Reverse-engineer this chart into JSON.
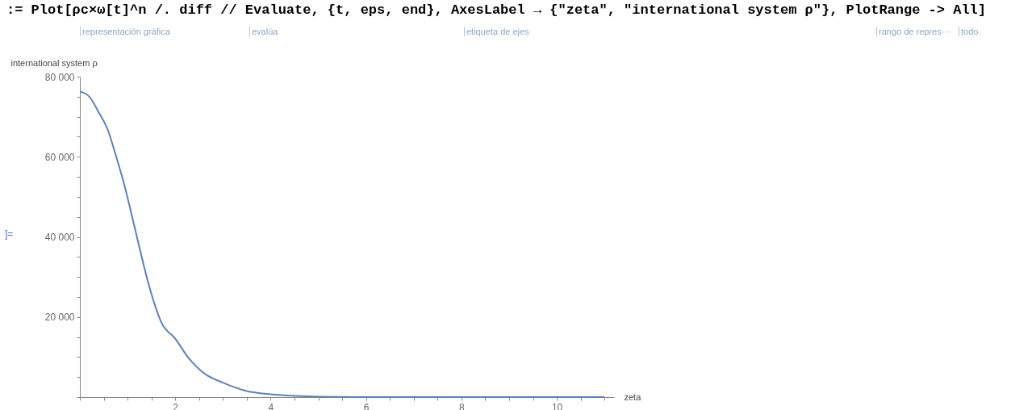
{
  "chart_data": {
    "type": "line",
    "xlabel": "zeta",
    "ylabel": "international system ρ",
    "annotations": [
      ":= Plot[ρc×ω[t]^n /. diff // Evaluate, {t, eps, end}, AxesLabel → {\"zeta\", \"international system ρ\"}, PlotRange -> All]",
      "representación gráfica",
      "evalúa",
      "etiqueta de ejes",
      "rango de repres···",
      "todo",
      "]="
    ],
    "x": [
      0,
      0.2,
      0.4,
      0.58,
      0.75,
      0.92,
      1.14,
      1.3,
      1.43,
      1.6,
      1.71,
      2.0,
      2.27,
      2.61,
      3.0,
      3.5,
      4.0,
      4.5,
      5.0,
      6.0,
      7.0,
      8.0,
      9.0,
      10.0,
      11.0
    ],
    "series": [
      {
        "color": "#5e81b5",
        "values": [
          76300,
          75000,
          71000,
          66900,
          60500,
          53500,
          42800,
          34800,
          28700,
          22000,
          18600,
          14600,
          9900,
          5900,
          3600,
          1500,
          700,
          300,
          100,
          0,
          0,
          0,
          0,
          0,
          0
        ]
      }
    ],
    "xlim": [
      0,
      11.2
    ],
    "xticks": [
      {
        "value": 0,
        "label": null
      },
      {
        "value": 0.5,
        "label": null
      },
      {
        "value": 1,
        "label": null
      },
      {
        "value": 1.5,
        "label": null
      },
      2,
      {
        "value": 2.5,
        "label": null
      },
      {
        "value": 3,
        "label": null
      },
      {
        "value": 3.5,
        "label": null
      },
      4,
      {
        "value": 4.5,
        "label": null
      },
      {
        "value": 5,
        "label": null
      },
      {
        "value": 5.5,
        "label": null
      },
      6,
      {
        "value": 6.5,
        "label": null
      },
      {
        "value": 7,
        "label": null
      },
      {
        "value": 7.5,
        "label": null
      },
      8,
      {
        "value": 8.5,
        "label": null
      },
      {
        "value": 9,
        "label": null
      },
      {
        "value": 9.5,
        "label": null
      },
      10,
      {
        "value": 10.5,
        "label": null
      },
      {
        "value": 11,
        "label": null
      }
    ],
    "ylim": [
      0,
      80000
    ],
    "yticks": [
      {
        "value": 0,
        "label": null
      },
      {
        "value": 5000,
        "label": null
      },
      {
        "value": 10000,
        "label": null
      },
      {
        "value": 15000,
        "label": null
      },
      {
        "value": 20000,
        "label": "20 000"
      },
      {
        "value": 25000,
        "label": null
      },
      {
        "value": 30000,
        "label": null
      },
      {
        "value": 35000,
        "label": null
      },
      {
        "value": 40000,
        "label": "40 000"
      },
      {
        "value": 45000,
        "label": null
      },
      {
        "value": 50000,
        "label": null
      },
      {
        "value": 55000,
        "label": null
      },
      {
        "value": 60000,
        "label": "60 000"
      },
      {
        "value": 65000,
        "label": null
      },
      {
        "value": 70000,
        "label": null
      },
      {
        "value": 75000,
        "label": null
      },
      {
        "value": 80000,
        "label": "80 000"
      }
    ],
    "grid": false,
    "marker": "none",
    "line_style": "solid"
  }
}
